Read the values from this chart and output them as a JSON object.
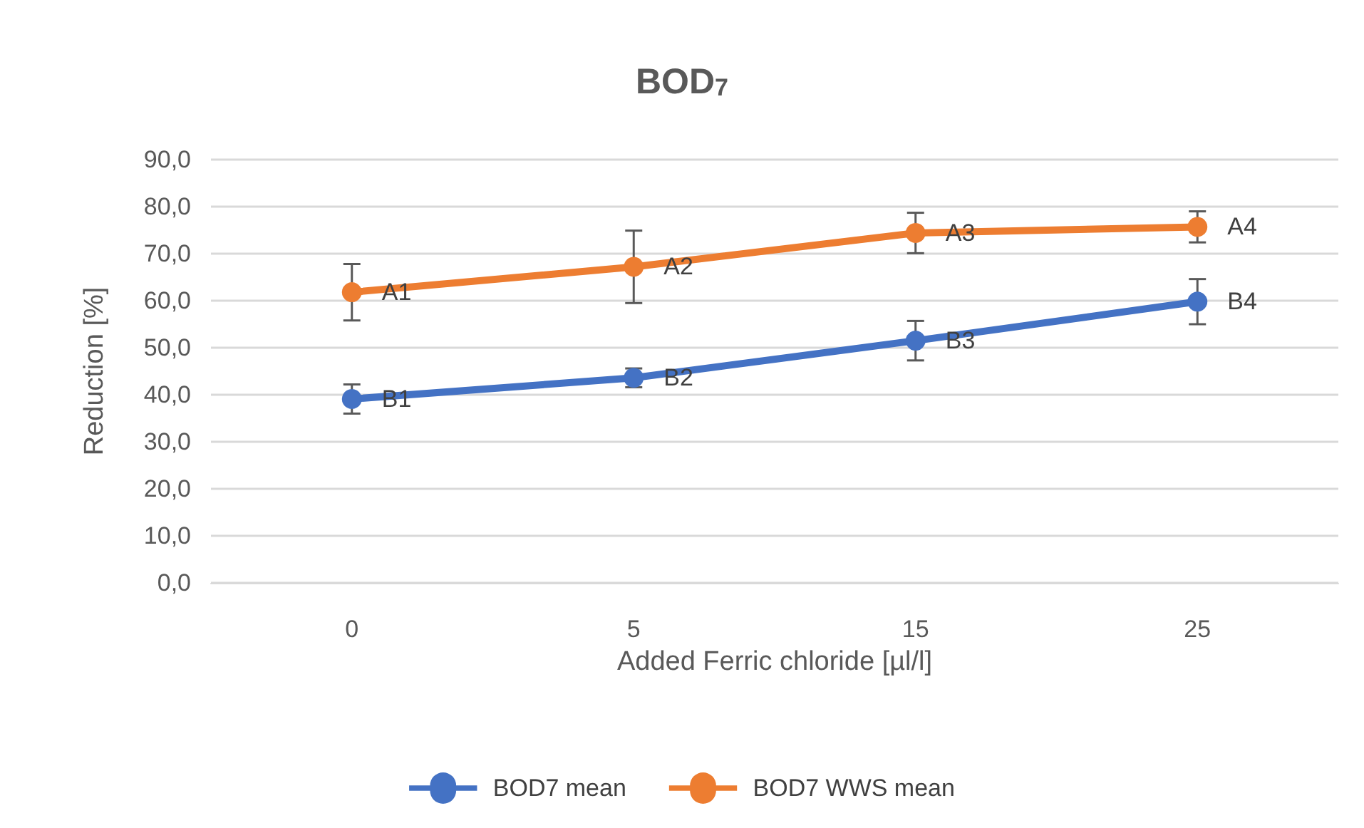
{
  "chart_data": {
    "type": "line",
    "title": "BOD$_{7}$",
    "xlabel": "Added Ferric chloride [µl/l]",
    "ylabel": "Reduction [%]",
    "categories": [
      "0",
      "5",
      "15",
      "25"
    ],
    "series": [
      {
        "name": "BOD7 mean",
        "color": "#4472c4",
        "values": [
          39.1,
          43.6,
          51.5,
          59.8
        ],
        "errors": [
          3.1,
          2.0,
          4.2,
          4.8
        ],
        "value_labels": [
          "B1",
          "B2",
          "B3",
          "B4"
        ]
      },
      {
        "name": "BOD7 WWS mean",
        "color": "#ed7d31",
        "values": [
          61.8,
          67.2,
          74.4,
          75.7
        ],
        "errors": [
          6.0,
          7.7,
          4.3,
          3.3
        ],
        "value_labels": [
          "A1",
          "A2",
          "A3",
          "A4"
        ]
      }
    ],
    "ylim": [
      0,
      90
    ],
    "yticks": [
      {
        "value": 0,
        "label": "0,0"
      },
      {
        "value": 10,
        "label": "10,0"
      },
      {
        "value": 20,
        "label": "20,0"
      },
      {
        "value": 30,
        "label": "30,0"
      },
      {
        "value": 40,
        "label": "40,0"
      },
      {
        "value": 50,
        "label": "50,0"
      },
      {
        "value": 60,
        "label": "60,0"
      },
      {
        "value": 70,
        "label": "70,0"
      },
      {
        "value": 80,
        "label": "80,0"
      },
      {
        "value": 90,
        "label": "90,0"
      }
    ],
    "grid": "y",
    "legend": "bottom",
    "marker": "circle",
    "line_style": "solid"
  }
}
